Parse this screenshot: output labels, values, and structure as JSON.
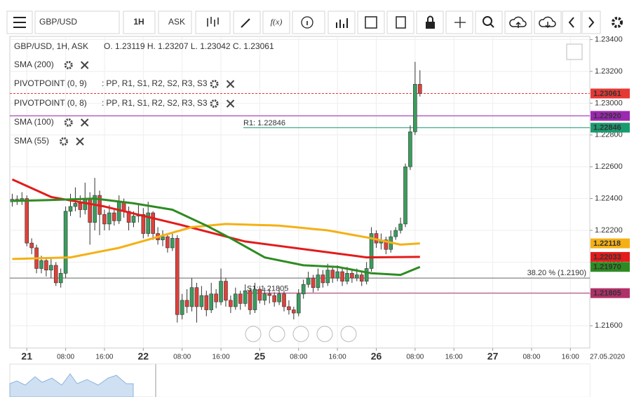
{
  "toolbar": {
    "symbol": "GBP/USD",
    "interval": "1H",
    "price_side": "ASK",
    "function_label": "f(x)"
  },
  "chart_data": {
    "type": "candlestick",
    "header": "GBP/USD, 1H, ASK",
    "ohlc_text": "O. 1.23119 H. 1.23207 L. 1.23042 C. 1.23061",
    "up_color": "#3a9d5d",
    "down_color": "#e0403a",
    "open": [
      1.2238,
      1.22395,
      1.22385,
      1.224,
      1.2212,
      1.2209,
      1.2196,
      1.2201,
      1.2195,
      1.2198,
      1.2187,
      1.2193,
      1.2232,
      1.2235,
      1.2237,
      1.2233,
      1.224,
      1.2225,
      1.2242,
      1.223,
      1.2224,
      1.2231,
      1.2226,
      1.2238,
      1.2232,
      1.2225,
      1.2229,
      1.223,
      1.2218,
      1.2231,
      1.2218,
      1.2214,
      1.2216,
      1.2209,
      1.2215,
      1.2167,
      1.2176,
      1.2172,
      1.2184,
      1.2172,
      1.2179,
      1.217,
      1.218,
      1.2175,
      1.2188,
      1.2176,
      1.2172,
      1.218,
      1.2174,
      1.2182,
      1.217,
      1.2183,
      1.2176,
      1.218,
      1.2179,
      1.2175,
      1.218,
      1.2172,
      1.217,
      1.2168,
      1.218,
      1.2186,
      1.219,
      1.2184,
      1.2192,
      1.2187,
      1.2195,
      1.219,
      1.2194,
      1.2188,
      1.2193,
      1.219,
      1.2192,
      1.2188,
      1.2196,
      1.2218,
      1.2212,
      1.2214,
      1.2208,
      1.2216,
      1.222,
      1.2224,
      1.226,
      1.2282,
      1.23119
    ],
    "high": [
      1.2243,
      1.2242,
      1.2244,
      1.2242,
      1.2215,
      1.2211,
      1.2204,
      1.2203,
      1.2202,
      1.22,
      1.2196,
      1.2235,
      1.2243,
      1.2247,
      1.2242,
      1.225,
      1.2244,
      1.2253,
      1.2245,
      1.2233,
      1.2236,
      1.2234,
      1.2242,
      1.224,
      1.2235,
      1.2232,
      1.2236,
      1.2234,
      1.2238,
      1.2232,
      1.2222,
      1.222,
      1.2218,
      1.2219,
      1.2217,
      1.218,
      1.2183,
      1.219,
      1.2187,
      1.2185,
      1.2182,
      1.2187,
      1.2183,
      1.2196,
      1.219,
      1.2179,
      1.2184,
      1.2182,
      1.2186,
      1.2184,
      1.2187,
      1.2185,
      1.2184,
      1.2183,
      1.2181,
      1.2184,
      1.2182,
      1.2176,
      1.2172,
      1.2183,
      1.2189,
      1.2194,
      1.2192,
      1.2196,
      1.2195,
      1.2199,
      1.2197,
      1.2198,
      1.2196,
      1.2197,
      1.2195,
      1.2196,
      1.2194,
      1.22,
      1.2222,
      1.222,
      1.2218,
      1.2216,
      1.222,
      1.2222,
      1.2228,
      1.2262,
      1.2286,
      1.2326,
      1.23207
    ],
    "low": [
      1.2235,
      1.2236,
      1.2236,
      1.221,
      1.2205,
      1.2193,
      1.2193,
      1.2191,
      1.219,
      1.2185,
      1.2184,
      1.219,
      1.2229,
      1.2232,
      1.2228,
      1.223,
      1.2211,
      1.222,
      1.2217,
      1.222,
      1.222,
      1.2223,
      1.2224,
      1.2228,
      1.222,
      1.2222,
      1.2225,
      1.2215,
      1.2216,
      1.2214,
      1.2211,
      1.221,
      1.2206,
      1.2207,
      1.2162,
      1.2164,
      1.2168,
      1.2169,
      1.2162,
      1.217,
      1.2166,
      1.2168,
      1.2171,
      1.2173,
      1.2172,
      1.2168,
      1.217,
      1.217,
      1.2172,
      1.2167,
      1.2168,
      1.2174,
      1.2173,
      1.2174,
      1.2172,
      1.2173,
      1.2169,
      1.2167,
      1.2164,
      1.2166,
      1.2177,
      1.2184,
      1.2181,
      1.2182,
      1.2184,
      1.2185,
      1.2187,
      1.2188,
      1.2185,
      1.2186,
      1.2187,
      1.2188,
      1.2185,
      1.2186,
      1.2194,
      1.2209,
      1.2208,
      1.2205,
      1.2206,
      1.2214,
      1.2218,
      1.2222,
      1.2258,
      1.228,
      1.23042
    ],
    "close": [
      1.22395,
      1.22385,
      1.224,
      1.2212,
      1.2209,
      1.2196,
      1.2201,
      1.2195,
      1.2198,
      1.2187,
      1.2193,
      1.2232,
      1.2235,
      1.2237,
      1.2233,
      1.224,
      1.2225,
      1.2242,
      1.223,
      1.2224,
      1.2231,
      1.2226,
      1.2238,
      1.2232,
      1.2225,
      1.2229,
      1.223,
      1.2218,
      1.2231,
      1.2218,
      1.2214,
      1.2216,
      1.2209,
      1.2215,
      1.2167,
      1.2176,
      1.2172,
      1.2184,
      1.2172,
      1.2179,
      1.217,
      1.218,
      1.2175,
      1.2188,
      1.2176,
      1.2172,
      1.218,
      1.2174,
      1.2182,
      1.217,
      1.2183,
      1.2176,
      1.218,
      1.2179,
      1.2175,
      1.218,
      1.2172,
      1.217,
      1.2168,
      1.218,
      1.2186,
      1.219,
      1.2184,
      1.2192,
      1.2187,
      1.2195,
      1.219,
      1.2194,
      1.2188,
      1.2193,
      1.219,
      1.2192,
      1.2188,
      1.2196,
      1.2218,
      1.2212,
      1.2214,
      1.2208,
      1.2216,
      1.222,
      1.2224,
      1.226,
      1.2282,
      1.23119,
      1.23061
    ],
    "series": [
      {
        "name": "SMA (200)",
        "color": "#e31b1b",
        "x": [
          0,
          8,
          19,
          34,
          48,
          63,
          73,
          84
        ],
        "values": [
          1.2252,
          1.2241,
          1.2235,
          1.2224,
          1.2213,
          1.2207,
          1.2203,
          1.22033
        ]
      },
      {
        "name": "SMA (100)",
        "color": "#f5b014",
        "x": [
          0,
          12,
          22,
          29,
          37,
          44,
          55,
          65,
          74,
          80,
          84
        ],
        "values": [
          1.2202,
          1.2203,
          1.2209,
          1.2215,
          1.2222,
          1.2224,
          1.2223,
          1.222,
          1.2215,
          1.2211,
          1.22118
        ]
      },
      {
        "name": "SMA (55)",
        "color": "#2e8b22",
        "x": [
          0,
          7,
          17,
          25,
          33,
          40,
          45,
          52,
          60,
          67,
          74,
          80,
          84
        ],
        "values": [
          1.22385,
          1.2239,
          1.224,
          1.2237,
          1.2233,
          1.2223,
          1.2215,
          1.2203,
          1.2198,
          1.2197,
          1.2193,
          1.2192,
          1.2197
        ]
      }
    ],
    "pivots": [
      {
        "name": "PIVOTPOINT (0, 9)",
        "levels": [
          {
            "name": "PP",
            "color": "#9c27b0"
          },
          {
            "name": "R1",
            "color": "#d0247a"
          },
          {
            "name": "S1",
            "color": "#8e24aa"
          },
          {
            "name": "R2",
            "color": "#3050c0"
          },
          {
            "name": "S2",
            "color": "#8e24aa"
          },
          {
            "name": "R3",
            "color": "#3050c0"
          },
          {
            "name": "S3",
            "color": "#138a8a"
          }
        ]
      },
      {
        "name": "PIVOTPOINT (0, 8)",
        "levels": [
          {
            "name": "PP",
            "color": "#9c27b0"
          },
          {
            "name": "R1",
            "color": "#2e8b22"
          },
          {
            "name": "S1",
            "color": "#9a7a10"
          },
          {
            "name": "R2",
            "color": "#3050c0"
          },
          {
            "name": "S2",
            "color": "#8e24aa"
          },
          {
            "name": "R3",
            "color": "#9a6a10"
          },
          {
            "name": "S3",
            "color": "#3050c0"
          }
        ]
      }
    ],
    "pivot_separator": ":",
    "level_separator": ",",
    "levels": [
      {
        "value": 1.23061,
        "label": "1.23061",
        "color": "#e53935",
        "text_color": "#ffffff",
        "line": "dashed"
      },
      {
        "value": 1.2292,
        "label": "1.22920",
        "color": "#9c27b0",
        "text_color": "#ffffff",
        "line": "full"
      },
      {
        "value": 1.22846,
        "label": "1.22846",
        "color": "#1a9a70",
        "text_color": "#ffffff",
        "line": "note"
      },
      {
        "value": 1.22118,
        "label": "1.22118",
        "color": "#f5b014",
        "text_color": "#000000",
        "line": "none"
      },
      {
        "value": 1.22033,
        "label": "1.22033",
        "color": "#e31b1b",
        "text_color": "#ffffff",
        "line": "none"
      },
      {
        "value": 1.2197,
        "label": "1.21970",
        "color": "#2e8b22",
        "text_color": "#ffffff",
        "line": "none"
      },
      {
        "value": 1.21805,
        "label": "1.21805",
        "color": "#b03068",
        "text_color": "#ffffff",
        "line": "note"
      }
    ],
    "level_notes": [
      {
        "value": 1.22846,
        "label": "R1: 1.22846",
        "color": "#1a9a70"
      },
      {
        "value": 1.21805,
        "label": "S1: 1.21805",
        "color": "#b03068"
      }
    ],
    "fib": {
      "value": 1.219,
      "label": "38.20 % (1.2190)"
    },
    "ylim": [
      1.2146,
      1.2342
    ],
    "yticks": [
      {
        "value": 1.216,
        "label": "1.21600"
      },
      {
        "value": 1.218,
        "label": "1.21800"
      },
      {
        "value": 1.22,
        "label": "1.22000"
      },
      {
        "value": 1.222,
        "label": "1.22200"
      },
      {
        "value": 1.224,
        "label": "1.22400"
      },
      {
        "value": 1.226,
        "label": "1.22600"
      },
      {
        "value": 1.228,
        "label": "1.22800"
      },
      {
        "value": 1.23,
        "label": "1.23000"
      },
      {
        "value": 1.232,
        "label": "1.23200"
      },
      {
        "value": 1.234,
        "label": "1.23400"
      }
    ],
    "xlim": [
      -0.5,
      119
    ],
    "xticks": [
      {
        "value": 3,
        "label": "21"
      },
      {
        "value": 11,
        "label": "08:00"
      },
      {
        "value": 19,
        "label": "16:00"
      },
      {
        "value": 27,
        "label": "22"
      },
      {
        "value": 35,
        "label": "08:00"
      },
      {
        "value": 43,
        "label": "16:00"
      },
      {
        "value": 51,
        "label": "25"
      },
      {
        "value": 59,
        "label": "08:00"
      },
      {
        "value": 67,
        "label": "16:00"
      },
      {
        "value": 75,
        "label": "26"
      },
      {
        "value": 83,
        "label": "08:00"
      },
      {
        "value": 91,
        "label": "16:00"
      },
      {
        "value": 99,
        "label": "27"
      },
      {
        "value": 107,
        "label": "08:00"
      },
      {
        "value": 115,
        "label": "16:00"
      }
    ],
    "date_label": "27.05.2020",
    "grid": true
  }
}
